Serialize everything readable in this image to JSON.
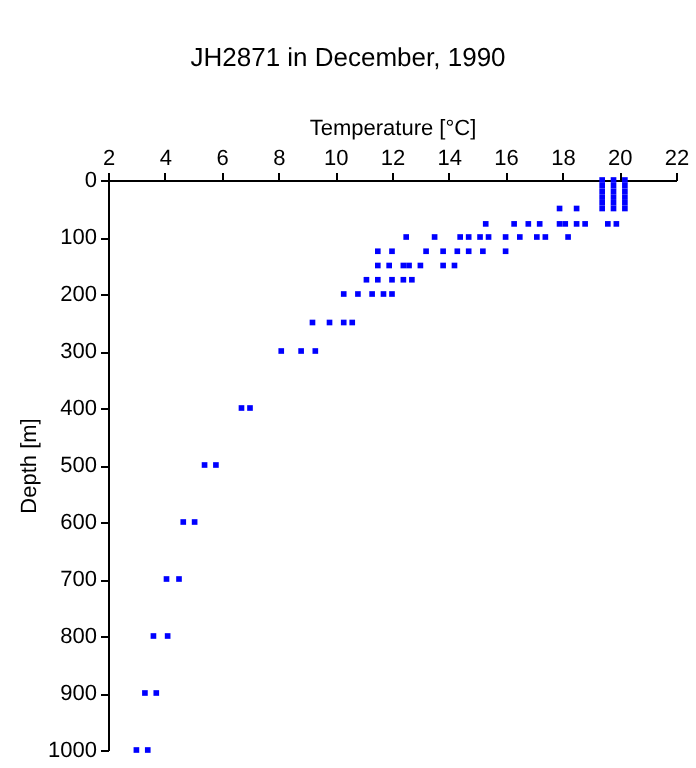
{
  "chart_data": {
    "type": "scatter",
    "title": "JH2871 in December, 1990",
    "xlabel": "Temperature [°C]",
    "ylabel": "Depth [m]",
    "xlim": [
      2,
      22
    ],
    "xticks": [
      2,
      4,
      6,
      8,
      10,
      12,
      14,
      16,
      18,
      20,
      22
    ],
    "ylim": [
      1000,
      0
    ],
    "yticks": [
      0,
      100,
      200,
      300,
      400,
      500,
      600,
      700,
      800,
      900,
      1000
    ],
    "grid": false,
    "marker": "square",
    "series": [
      {
        "color": "#0000ff",
        "x": [
          19.4,
          19.8,
          20.2,
          19.4,
          19.8,
          20.2,
          19.4,
          19.8,
          20.2,
          19.4,
          19.8,
          20.2,
          19.4,
          19.8,
          20.2,
          19.4,
          19.8,
          20.2,
          17.9,
          18.5,
          15.3,
          16.3,
          16.8,
          17.2,
          17.9,
          18.1,
          18.5,
          18.8,
          19.6,
          19.9,
          12.5,
          13.5,
          14.4,
          14.7,
          15.1,
          15.4,
          16.0,
          16.5,
          17.1,
          17.4,
          18.2,
          11.5,
          12.0,
          13.2,
          13.8,
          14.3,
          14.7,
          15.2,
          16.0,
          11.5,
          11.9,
          12.4,
          12.6,
          13.0,
          13.8,
          14.2,
          11.1,
          11.5,
          12.0,
          12.4,
          12.7,
          10.3,
          10.8,
          11.3,
          11.7,
          12.0,
          9.2,
          9.8,
          10.3,
          10.6,
          8.1,
          8.8,
          9.3,
          6.7,
          7.0,
          5.4,
          5.8,
          4.65,
          5.05,
          4.06,
          4.5,
          3.6,
          4.1,
          3.3,
          3.7,
          3.0,
          3.4
        ],
        "values": [
          0,
          0,
          0,
          10,
          10,
          10,
          20,
          20,
          20,
          30,
          30,
          30,
          40,
          40,
          40,
          50,
          50,
          50,
          50,
          50,
          77,
          77,
          77,
          77,
          77,
          77,
          77,
          77,
          77,
          77,
          100,
          100,
          100,
          100,
          100,
          100,
          100,
          100,
          100,
          100,
          100,
          125,
          125,
          125,
          125,
          125,
          125,
          125,
          125,
          150,
          150,
          150,
          150,
          150,
          150,
          150,
          175,
          175,
          175,
          175,
          175,
          200,
          200,
          200,
          200,
          200,
          250,
          250,
          250,
          250,
          300,
          300,
          300,
          400,
          400,
          500,
          500,
          600,
          600,
          700,
          700,
          800,
          800,
          900,
          900,
          1000,
          1000
        ]
      }
    ]
  }
}
